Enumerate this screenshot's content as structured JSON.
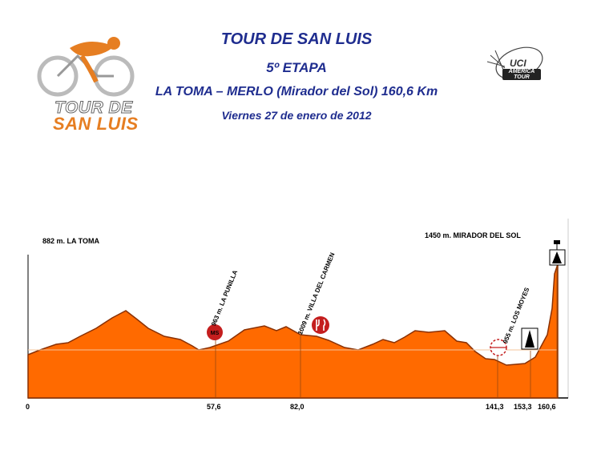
{
  "header": {
    "title": "TOUR DE SAN LUIS",
    "stage": "5º ETAPA",
    "route": "LA TOMA – MERLO (Mirador del Sol) 160,6 Km",
    "date": "Viernes 27 de enero de 2012"
  },
  "logos": {
    "event_line1": "TOUR DE",
    "event_line2": "SAN LUIS",
    "uci_text": "UCI",
    "uci_badge": "AMERICA TOUR"
  },
  "profile": {
    "start_label": "882 m. LA TOMA",
    "finish_label": "1450 m. MIRADOR DEL SOL",
    "waypoints": [
      {
        "km_label": "57,6",
        "name": "963 m. LA PUNILLA"
      },
      {
        "km_label": "82,0",
        "name": "1009 m. VILLA DEL CARMEN"
      },
      {
        "km_label": "141,3",
        "name": "955 m. LOS MOYES"
      }
    ],
    "km_axis": [
      "0",
      "57,6",
      "82,0",
      "141,3",
      "153,3",
      "160,6"
    ],
    "colors": {
      "fill": "#ff6a00",
      "outline": "#8a3000",
      "sprint_marker": "#c41e1e"
    },
    "icons": [
      "sprint-marker-icon",
      "feed-zone-icon",
      "km-to-go-icon",
      "last-km-icon",
      "finish-flag-icon"
    ]
  }
}
